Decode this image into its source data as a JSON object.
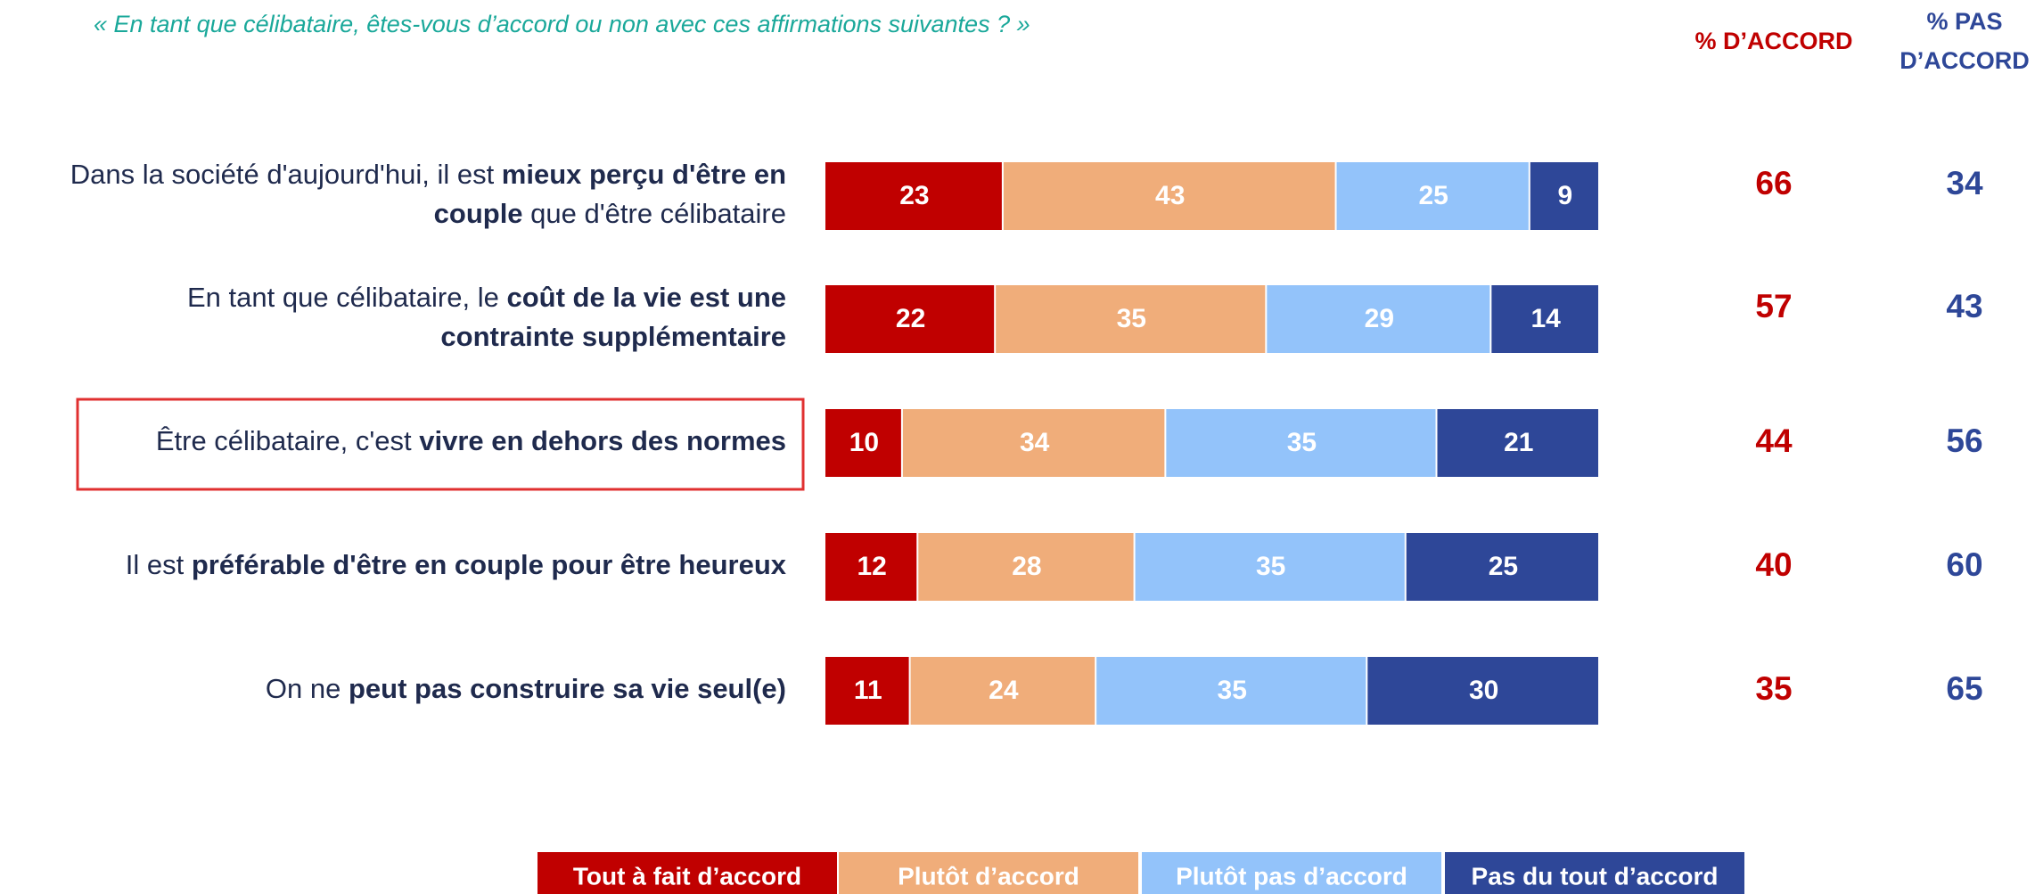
{
  "chart_data": {
    "type": "stacked-bar-horizontal",
    "subtitle": "« En tant que célibataire, êtes-vous d’accord ou non avec ces affirmations suivantes ? »",
    "categories": [
      [
        [
          {
            "text": "Dans la société d'aujourd'hui, il est "
          },
          {
            "text": "mieux perçu d'être en",
            "bold": true
          }
        ],
        [
          {
            "text": "couple",
            "bold": true
          },
          {
            "text": " que d'être célibataire"
          }
        ]
      ],
      [
        [
          {
            "text": "En tant que célibataire, le "
          },
          {
            "text": "coût de la vie est une",
            "bold": true
          }
        ],
        [
          {
            "text": "contrainte supplémentaire",
            "bold": true
          }
        ]
      ],
      [
        [
          {
            "text": "Être célibataire, c'est "
          },
          {
            "text": "vivre en dehors des normes",
            "bold": true
          }
        ]
      ],
      [
        [
          {
            "text": "Il est "
          },
          {
            "text": "préférable d'être en couple pour être heureux",
            "bold": true
          }
        ]
      ],
      [
        [
          {
            "text": "On ne "
          },
          {
            "text": "peut pas construire sa vie seul(e)",
            "bold": true
          }
        ]
      ]
    ],
    "series": [
      {
        "name": "Tout à fait d’accord",
        "color": "#c00000",
        "values": [
          23,
          22,
          10,
          12,
          11
        ]
      },
      {
        "name": "Plutôt d’accord",
        "color": "#f0ad7a",
        "values": [
          43,
          35,
          34,
          28,
          24
        ]
      },
      {
        "name": "Plutôt pas d’accord",
        "color": "#93c3fa",
        "values": [
          25,
          29,
          35,
          35,
          35
        ]
      },
      {
        "name": "Pas du tout d’accord",
        "color": "#2e4798",
        "values": [
          9,
          14,
          21,
          25,
          30
        ]
      }
    ],
    "xlim": [
      0,
      100
    ],
    "totals": [
      {
        "header": [
          "% D’ACCORD"
        ],
        "color": "#c00000",
        "values": [
          66,
          57,
          44,
          40,
          35
        ]
      },
      {
        "header": [
          "% PAS",
          "D’ACCORD"
        ],
        "color": "#2e4798",
        "values": [
          34,
          43,
          56,
          60,
          65
        ]
      }
    ]
  }
}
